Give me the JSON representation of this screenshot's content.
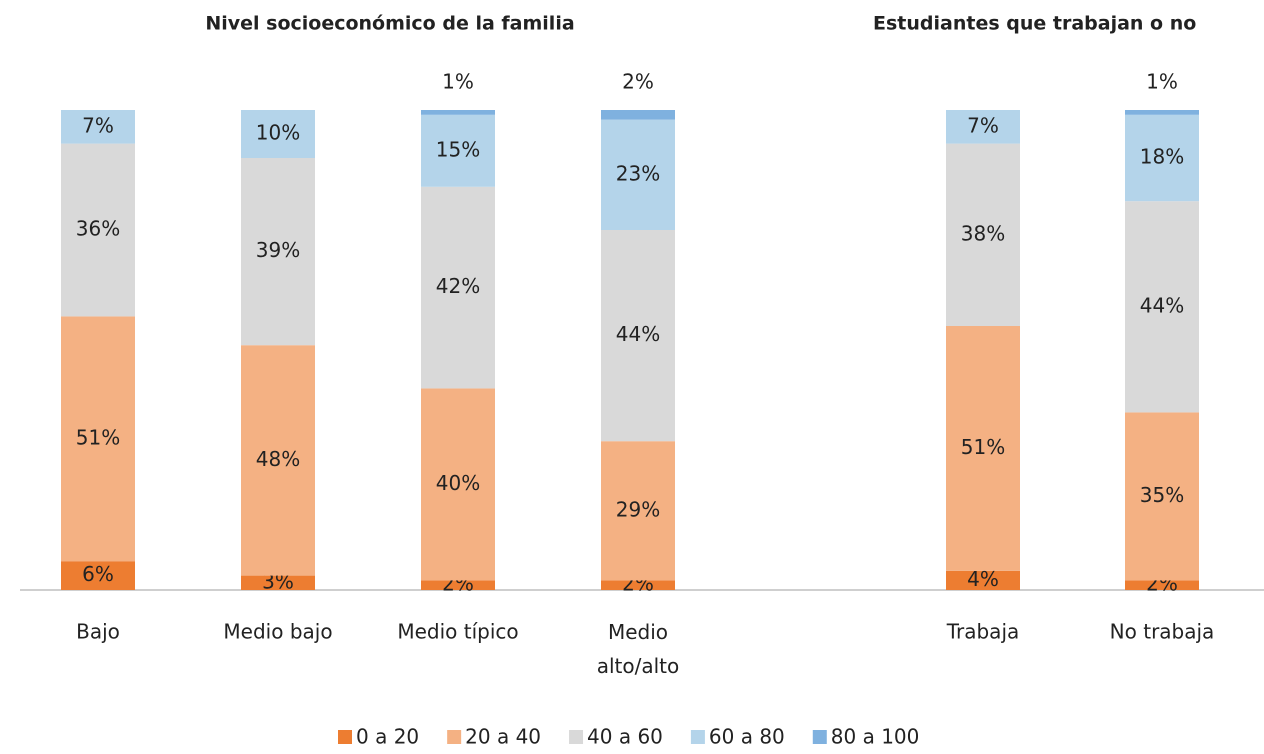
{
  "chart_data": [
    {
      "type": "stacked_bar",
      "title": "Nivel socioeconómico de la familia",
      "categories": [
        "Bajo",
        "Medio bajo",
        "Medio típico",
        "Medio alto/alto"
      ],
      "ylim": [
        0,
        100
      ],
      "series": [
        {
          "name": "0 a 20",
          "color": "#ed7d31",
          "values": [
            6,
            3,
            2,
            2
          ],
          "value_labels": [
            "6%",
            "3%",
            "2%",
            "2%"
          ]
        },
        {
          "name": "20 a 40",
          "color": "#f4b183",
          "values": [
            51,
            48,
            40,
            29
          ],
          "value_labels": [
            "51%",
            "48%",
            "40%",
            "29%"
          ]
        },
        {
          "name": "40 a 60",
          "color": "#d9d9d9",
          "values": [
            36,
            39,
            42,
            44
          ],
          "value_labels": [
            "36%",
            "39%",
            "42%",
            "44%"
          ]
        },
        {
          "name": "60 a 80",
          "color": "#b4d4ea",
          "values": [
            7,
            10,
            15,
            23
          ],
          "value_labels": [
            "7%",
            "10%",
            "15%",
            "23%"
          ]
        },
        {
          "name": "80 a 100",
          "color": "#7fb1df",
          "values": [
            null,
            null,
            1,
            2
          ],
          "value_labels": [
            null,
            null,
            "1%",
            "2%"
          ]
        }
      ]
    },
    {
      "type": "stacked_bar",
      "title": "Estudiantes que trabajan o no",
      "categories": [
        "Trabaja",
        "No trabaja"
      ],
      "ylim": [
        0,
        100
      ],
      "series": [
        {
          "color": "#ed7d31",
          "values": [
            4,
            2
          ],
          "value_labels": [
            "4%",
            "2%"
          ]
        },
        {
          "color": "#f4b183",
          "values": [
            51,
            35
          ],
          "value_labels": [
            "51%",
            "35%"
          ]
        },
        {
          "color": "#d9d9d9",
          "values": [
            38,
            44
          ],
          "value_labels": [
            "38%",
            "44%"
          ]
        },
        {
          "color": "#b4d4ea",
          "values": [
            7,
            18
          ],
          "value_labels": [
            "7%",
            "18%"
          ]
        },
        {
          "color": "#7fb1df",
          "values": [
            null,
            1
          ],
          "value_labels": [
            null,
            "1%"
          ]
        }
      ]
    }
  ]
}
